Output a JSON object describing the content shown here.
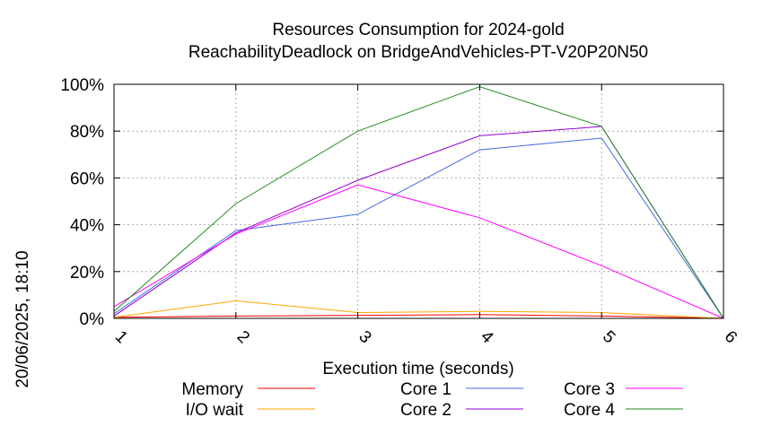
{
  "chart_data": {
    "type": "line",
    "title": "Resources Consumption for 2024-gold",
    "subtitle": "ReachabilityDeadlock on BridgeAndVehicles-PT-V20P20N50",
    "xlabel": "Execution time (seconds)",
    "ylabel": "",
    "side_note": "20/06/2025, 18:10",
    "x": [
      1,
      2,
      3,
      4,
      5,
      6
    ],
    "xlim": [
      1,
      6
    ],
    "ylim": [
      0,
      100
    ],
    "x_tick_labels": [
      "1",
      "2",
      "3",
      "4",
      "5",
      "6"
    ],
    "y_tick_labels": [
      "0%",
      "20%",
      "40%",
      "60%",
      "80%",
      "100%"
    ],
    "y_ticks": [
      0,
      20,
      40,
      60,
      80,
      100
    ],
    "grid": true,
    "legend_position": "bottom",
    "series": [
      {
        "name": "Memory",
        "color": "#ff0000",
        "values": [
          0.5,
          1.0,
          1.3,
          1.6,
          1.0,
          0
        ]
      },
      {
        "name": "I/O wait",
        "color": "#ffa500",
        "values": [
          0.5,
          7.5,
          2.5,
          3.0,
          2.5,
          0
        ]
      },
      {
        "name": "Core 1",
        "color": "#4169e1",
        "values": [
          2,
          37.5,
          44.5,
          72,
          77,
          0
        ]
      },
      {
        "name": "Core 2",
        "color": "#9400d3",
        "values": [
          1,
          36.5,
          59,
          78,
          82,
          0
        ]
      },
      {
        "name": "Core 3",
        "color": "#ff00ff",
        "values": [
          5,
          36,
          57,
          43,
          22.5,
          0
        ]
      },
      {
        "name": "Core 4",
        "color": "#228b22",
        "values": [
          3,
          49,
          80,
          99,
          82,
          0
        ]
      }
    ]
  }
}
